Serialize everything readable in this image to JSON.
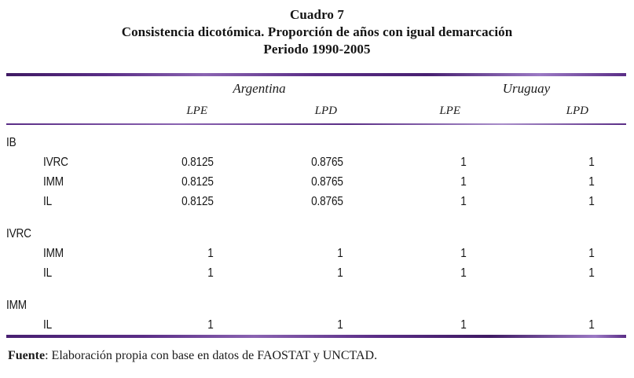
{
  "title": {
    "line1": "Cuadro 7",
    "line2": "Consistencia dicotómica. Proporción de años con igual demarcación",
    "line3": "Periodo 1990-2005"
  },
  "table": {
    "country_headers": [
      "Argentina",
      "Uruguay"
    ],
    "column_headers": [
      "LPE",
      "LPD",
      "LPE",
      "LPD"
    ],
    "groups": [
      {
        "label": "IB",
        "rows": [
          {
            "label": "IVRC",
            "values": [
              "0.8125",
              "0.8765",
              "1",
              "1"
            ]
          },
          {
            "label": "IMM",
            "values": [
              "0.8125",
              "0.8765",
              "1",
              "1"
            ]
          },
          {
            "label": "IL",
            "values": [
              "0.8125",
              "0.8765",
              "1",
              "1"
            ]
          }
        ]
      },
      {
        "label": "IVRC",
        "rows": [
          {
            "label": "IMM",
            "values": [
              "1",
              "1",
              "1",
              "1"
            ]
          },
          {
            "label": "IL",
            "values": [
              "1",
              "1",
              "1",
              "1"
            ]
          }
        ]
      },
      {
        "label": "IMM",
        "rows": [
          {
            "label": "IL",
            "values": [
              "1",
              "1",
              "1",
              "1"
            ]
          }
        ]
      }
    ]
  },
  "footer": {
    "source_label": "Fuente",
    "source_text": ": Elaboración propia con base en datos de FAOSTAT y UNCTAD."
  },
  "colors": {
    "rule_dark": "#5a2d86",
    "rule_light": "#8a63b1",
    "text": "#1b1b1b"
  }
}
